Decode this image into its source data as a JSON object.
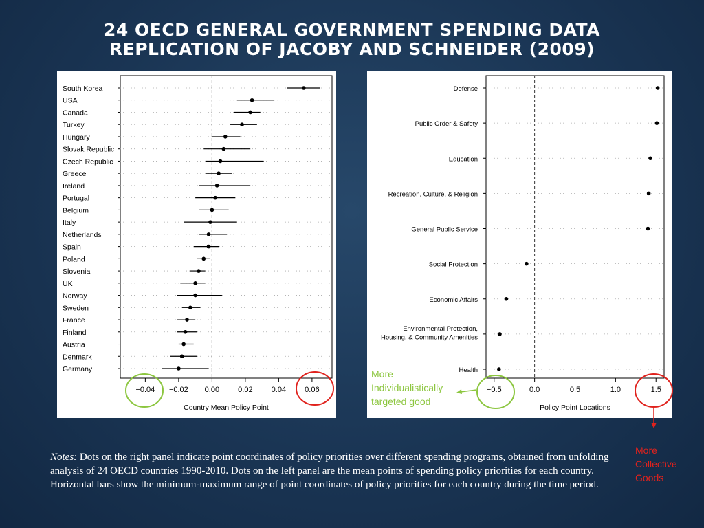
{
  "title_line1": "24 OECD GENERAL GOVERNMENT SPENDING DATA",
  "title_line2": "REPLICATION OF JACOBY AND SCHNEIDER (2009)",
  "annotations": {
    "green": [
      "More",
      "Individualistically",
      "targeted good"
    ],
    "red": [
      "More",
      "Collective",
      "Goods"
    ]
  },
  "notes": {
    "label": "Notes:",
    "text": " Dots on the right panel indicate point coordinates of policy priorities over different spending programs, obtained from unfolding analysis of 24 OECD countries 1990-2010. Dots on the left panel are the mean points of spending policy priorities for each country. Horizontal bars show the minimum-maximum range of point coordinates of policy priorities for each country during the time period."
  },
  "colors": {
    "green": "#8cc63f",
    "red": "#e0221d",
    "background": "#1a3554"
  },
  "chart_data": [
    {
      "type": "scatter",
      "xlabel": "Country Mean Policy Point",
      "xlim": [
        -0.055,
        0.072
      ],
      "xticks": [
        -0.04,
        -0.02,
        0.0,
        0.02,
        0.04,
        0.06
      ],
      "xtick_labels": [
        "−0.04",
        "−0.02",
        "0.00",
        "0.02",
        "0.04",
        "0.06"
      ],
      "reference_line_x": 0,
      "categories": [
        "South Korea",
        "USA",
        "Canada",
        "Turkey",
        "Hungary",
        "Slovak Republic",
        "Czech Republic",
        "Greece",
        "Ireland",
        "Portugal",
        "Belgium",
        "Italy",
        "Netherlands",
        "Spain",
        "Poland",
        "Slovenia",
        "UK",
        "Norway",
        "Sweden",
        "France",
        "Finland",
        "Austria",
        "Denmark",
        "Germany"
      ],
      "values": [
        0.055,
        0.024,
        0.023,
        0.018,
        0.008,
        0.007,
        0.005,
        0.004,
        0.003,
        0.002,
        0.0,
        -0.001,
        -0.002,
        -0.002,
        -0.005,
        -0.008,
        -0.01,
        -0.01,
        -0.013,
        -0.015,
        -0.016,
        -0.017,
        -0.018,
        -0.02
      ],
      "ranges": [
        [
          0.045,
          0.065
        ],
        [
          0.015,
          0.037
        ],
        [
          0.013,
          0.029
        ],
        [
          0.011,
          0.027
        ],
        [
          0.0,
          0.017
        ],
        [
          -0.005,
          0.023
        ],
        [
          -0.004,
          0.031
        ],
        [
          -0.004,
          0.012
        ],
        [
          -0.008,
          0.023
        ],
        [
          -0.01,
          0.014
        ],
        [
          -0.008,
          0.01
        ],
        [
          -0.017,
          0.015
        ],
        [
          -0.008,
          0.009
        ],
        [
          -0.011,
          0.004
        ],
        [
          -0.009,
          -0.001
        ],
        [
          -0.013,
          -0.004
        ],
        [
          -0.019,
          -0.004
        ],
        [
          -0.021,
          0.006
        ],
        [
          -0.018,
          -0.007
        ],
        [
          -0.021,
          -0.01
        ],
        [
          -0.021,
          -0.009
        ],
        [
          -0.02,
          -0.011
        ],
        [
          -0.025,
          -0.009
        ],
        [
          -0.03,
          -0.002
        ]
      ]
    },
    {
      "type": "scatter",
      "xlabel": "Policy Point Locations",
      "xlim": [
        -0.6,
        1.6
      ],
      "xticks": [
        -0.5,
        0.0,
        0.5,
        1.0,
        1.5
      ],
      "xtick_labels": [
        "−0.5",
        "0.0",
        "0.5",
        "1.0",
        "1.5"
      ],
      "reference_line_x": 0,
      "categories": [
        "Defense",
        "Public Order & Safety",
        "Education",
        "Recreation, Culture, & Religion",
        "General Public Service",
        "Social Protection",
        "Economic Affairs",
        "Environmental Protection,\nHousing, & Community Amenities",
        "Health"
      ],
      "values": [
        1.52,
        1.51,
        1.43,
        1.41,
        1.4,
        -0.1,
        -0.35,
        -0.43,
        -0.44
      ]
    }
  ]
}
